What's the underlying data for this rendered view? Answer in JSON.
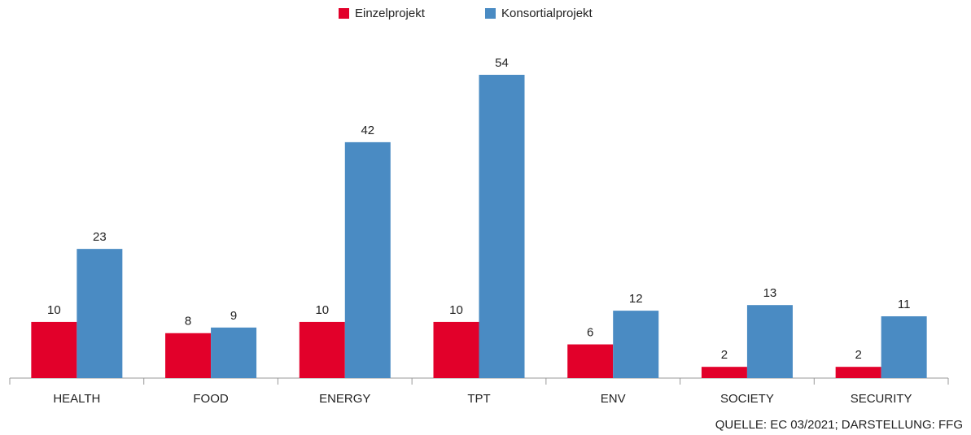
{
  "chart_data": {
    "type": "bar",
    "categories": [
      "HEALTH",
      "FOOD",
      "ENERGY",
      "TPT",
      "ENV",
      "SOCIETY",
      "SECURITY"
    ],
    "series": [
      {
        "name": "Einzelprojekt",
        "color": "#e2002a",
        "values": [
          10,
          8,
          10,
          10,
          6,
          2,
          2
        ]
      },
      {
        "name": "Konsortialprojekt",
        "color": "#4a8bc3",
        "values": [
          23,
          9,
          42,
          54,
          12,
          13,
          11
        ]
      }
    ],
    "source": "QUELLE: EC 03/2021; DARSTELLUNG: FFG"
  }
}
